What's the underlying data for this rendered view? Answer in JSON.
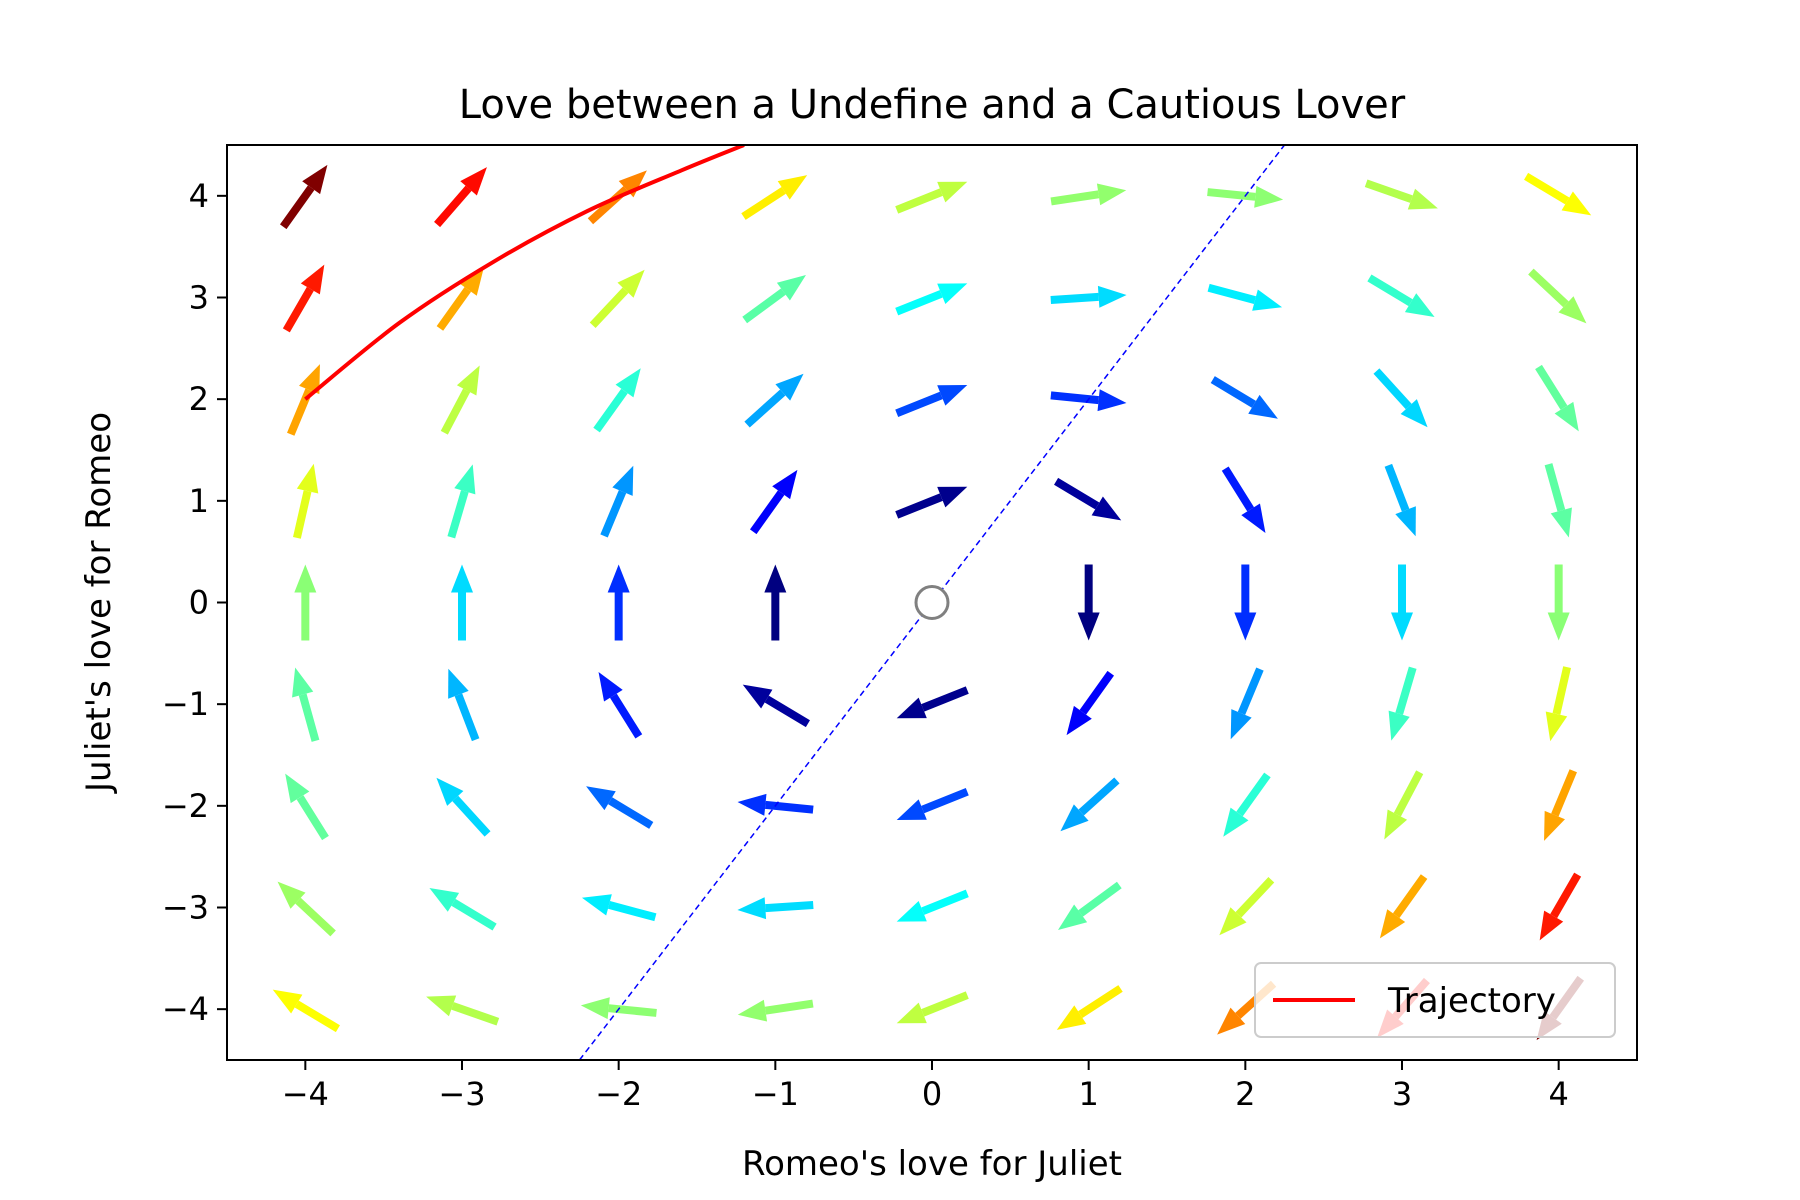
{
  "chart_data": {
    "type": "quiver",
    "title": "Love between a Undefine and a Cautious Lover",
    "xlabel": "Romeo's love for Juliet",
    "ylabel": "Juliet's love for Romeo",
    "xlim": [
      -4.5,
      4.5
    ],
    "ylim": [
      -4.5,
      4.5
    ],
    "xticks": [
      -4,
      -3,
      -2,
      -1,
      0,
      1,
      2,
      3,
      4
    ],
    "yticks": [
      -4,
      -3,
      -2,
      -1,
      0,
      1,
      2,
      3,
      4
    ],
    "xtick_labels": [
      "−4",
      "−3",
      "−2",
      "−1",
      "0",
      "1",
      "2",
      "3",
      "4"
    ],
    "ytick_labels": [
      "−4",
      "−3",
      "−2",
      "−1",
      "0",
      "1",
      "2",
      "3",
      "4"
    ],
    "grid": false,
    "colormap": "jet",
    "vector_field": {
      "grid_x": [
        -4,
        -3,
        -2,
        -1,
        0,
        1,
        2,
        3,
        4
      ],
      "grid_y": [
        -4,
        -3,
        -2,
        -1,
        0,
        1,
        2,
        3,
        4
      ],
      "dx": "y",
      "dy": "-x + 0.4*y"
    },
    "equilibrium": {
      "x": 0,
      "y": 0
    },
    "nullcline": {
      "x": [
        -2.25,
        2.25
      ],
      "y": [
        -4.5,
        4.5
      ]
    },
    "series": [
      {
        "name": "Trajectory",
        "color": "#ff0000",
        "x": [
          -4.0,
          -3.4,
          -2.8,
          -2.2,
          -1.6,
          -1.2
        ],
        "y": [
          2.0,
          2.75,
          3.35,
          3.85,
          4.25,
          4.5
        ]
      }
    ],
    "legend": {
      "position": "lower-right",
      "entries": [
        "Trajectory"
      ]
    }
  }
}
